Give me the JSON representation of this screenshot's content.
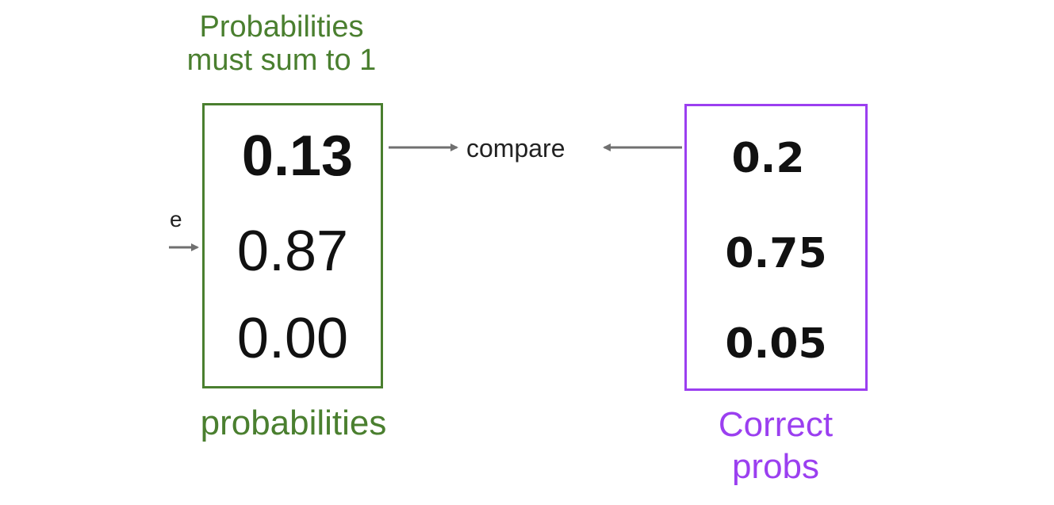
{
  "header": {
    "constraint_line1": "Probabilities",
    "constraint_line2": "must sum to 1"
  },
  "predicted": {
    "values": [
      "0.13",
      "0.87",
      "0.00"
    ],
    "caption": "probabilities",
    "color": "#4a7f2f"
  },
  "target": {
    "values": [
      "0.2",
      "0.75",
      "0.05"
    ],
    "caption_line1": "Correct",
    "caption_line2": "probs",
    "color": "#9b3ff0"
  },
  "compare_label": "compare",
  "input_label": "e",
  "arrow_color": "#707070"
}
